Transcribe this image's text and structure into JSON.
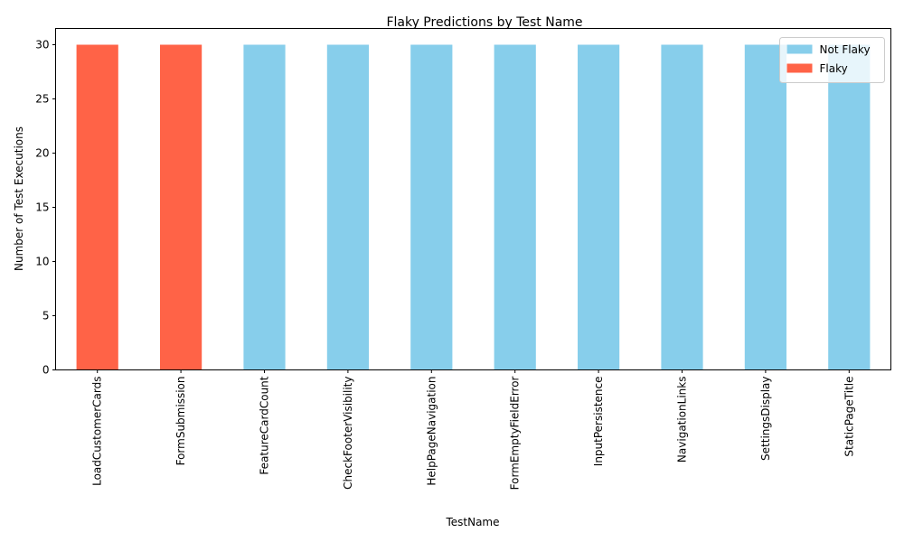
{
  "chart_data": {
    "type": "bar",
    "stacked": true,
    "title": "Flaky Predictions by Test Name",
    "xlabel": "TestName",
    "ylabel": "Number of Test Executions",
    "ylim": [
      0,
      31.5
    ],
    "yticks": [
      0,
      5,
      10,
      15,
      20,
      25,
      30
    ],
    "categories": [
      "LoadCustomerCards",
      "FormSubmission",
      "FeatureCardCount",
      "CheckFooterVisibility",
      "HelpPageNavigation",
      "FormEmptyFieldError",
      "InputPersistence",
      "NavigationLinks",
      "SettingsDisplay",
      "StaticPageTitle"
    ],
    "series": [
      {
        "name": "Not Flaky",
        "color": "#87CEEB",
        "values": [
          0,
          0,
          30,
          30,
          30,
          30,
          30,
          30,
          30,
          30
        ]
      },
      {
        "name": "Flaky",
        "color": "#FF6347",
        "values": [
          30,
          30,
          0,
          0,
          0,
          0,
          0,
          0,
          0,
          0
        ]
      }
    ],
    "grid": false,
    "legend_position": "top-right"
  }
}
